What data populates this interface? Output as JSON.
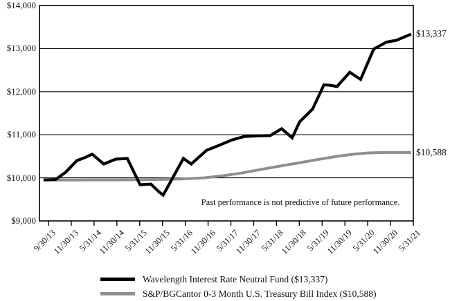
{
  "chart_data": {
    "type": "line",
    "title": "",
    "xlabel": "",
    "ylabel": "",
    "grid": true,
    "legend_position": "bottom",
    "annotation": "Past performance is not predictive of future performance.",
    "y_axis": {
      "min": 9000,
      "max": 14000,
      "step": 1000,
      "tick_labels": [
        "$9,000",
        "$10,000",
        "$11,000",
        "$12,000",
        "$13,000",
        "$14,000"
      ]
    },
    "x_axis": {
      "tick_labels": [
        "9/30/13",
        "11/30/13",
        "5/31/14",
        "11/30/14",
        "5/31/15",
        "11/30/15",
        "5/31/16",
        "11/30/16",
        "5/31/17",
        "11/30/17",
        "5/31/18",
        "11/30/18",
        "5/31/19",
        "11/30/19",
        "5/31/20",
        "11/30/20",
        "5/31/21"
      ]
    },
    "series": [
      {
        "name": "Wavelength Interest Rate Neutral Fund",
        "color": "#000000",
        "line_width": 4.2,
        "end_label": "$13,337",
        "final_value": 13337,
        "points": [
          [
            0.011,
            9950
          ],
          [
            0.043,
            9960
          ],
          [
            0.07,
            10130
          ],
          [
            0.1,
            10400
          ],
          [
            0.12,
            10465
          ],
          [
            0.141,
            10550
          ],
          [
            0.172,
            10320
          ],
          [
            0.204,
            10435
          ],
          [
            0.235,
            10450
          ],
          [
            0.269,
            9840
          ],
          [
            0.298,
            9855
          ],
          [
            0.319,
            9680
          ],
          [
            0.331,
            9600
          ],
          [
            0.385,
            10450
          ],
          [
            0.406,
            10320
          ],
          [
            0.447,
            10640
          ],
          [
            0.478,
            10745
          ],
          [
            0.515,
            10880
          ],
          [
            0.548,
            10960
          ],
          [
            0.587,
            10975
          ],
          [
            0.617,
            10980
          ],
          [
            0.648,
            11140
          ],
          [
            0.676,
            10930
          ],
          [
            0.696,
            11300
          ],
          [
            0.731,
            11600
          ],
          [
            0.761,
            12160
          ],
          [
            0.776,
            12150
          ],
          [
            0.796,
            12120
          ],
          [
            0.83,
            12450
          ],
          [
            0.859,
            12285
          ],
          [
            0.894,
            12990
          ],
          [
            0.909,
            13060
          ],
          [
            0.928,
            13150
          ],
          [
            0.954,
            13190
          ],
          [
            0.994,
            13337
          ]
        ]
      },
      {
        "name": "S&P/BGCantor 0-3 Month U.S. Treasury Bill Index",
        "color": "#8f8f8f",
        "line_width": 4,
        "end_label": "$10,588",
        "final_value": 10588,
        "points": [
          [
            0.011,
            9950
          ],
          [
            0.1,
            9950
          ],
          [
            0.2,
            9952
          ],
          [
            0.3,
            9960
          ],
          [
            0.38,
            9975
          ],
          [
            0.44,
            10000
          ],
          [
            0.49,
            10048
          ],
          [
            0.54,
            10110
          ],
          [
            0.59,
            10190
          ],
          [
            0.645,
            10275
          ],
          [
            0.7,
            10355
          ],
          [
            0.75,
            10435
          ],
          [
            0.8,
            10505
          ],
          [
            0.845,
            10555
          ],
          [
            0.88,
            10578
          ],
          [
            0.92,
            10588
          ],
          [
            0.994,
            10588
          ]
        ]
      }
    ],
    "legend": [
      {
        "label": "Wavelength Interest Rate Neutral Fund ($13,337)"
      },
      {
        "label": "S&P/BGCantor 0-3 Month U.S. Treasury Bill Index ($10,588)"
      }
    ]
  }
}
